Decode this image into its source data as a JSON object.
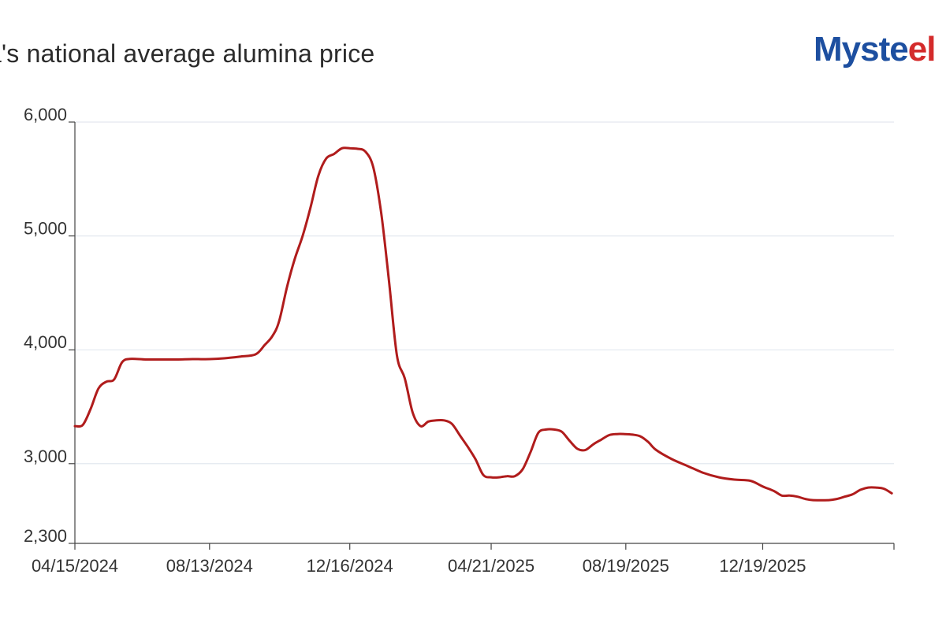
{
  "chart_data": {
    "type": "line",
    "title": "na's national average alumina price",
    "xlabel": "",
    "ylabel": "",
    "ylim": [
      2300,
      6000
    ],
    "y_ticks": [
      "6,000",
      "5,000",
      "4,000",
      "3,000",
      "2,300"
    ],
    "y_tick_values": [
      6000,
      5000,
      4000,
      3000,
      2300
    ],
    "x_range": [
      "2024-04-15",
      "2026-04-15"
    ],
    "x_ticks": [
      "04/15/2024",
      "08/13/2024",
      "12/16/2024",
      "04/21/2025",
      "08/19/2025",
      "12/19/2025"
    ],
    "x_tick_dates": [
      "2024-04-15",
      "2024-08-13",
      "2024-12-16",
      "2025-04-21",
      "2025-08-19",
      "2025-12-19"
    ],
    "grid": true,
    "series": [
      {
        "color": "#b01c1c",
        "points": [
          [
            "2024-04-15",
            3330
          ],
          [
            "2024-04-22",
            3340
          ],
          [
            "2024-04-29",
            3480
          ],
          [
            "2024-05-06",
            3660
          ],
          [
            "2024-05-13",
            3720
          ],
          [
            "2024-05-20",
            3740
          ],
          [
            "2024-05-27",
            3890
          ],
          [
            "2024-06-03",
            3920
          ],
          [
            "2024-06-17",
            3915
          ],
          [
            "2024-07-01",
            3915
          ],
          [
            "2024-07-15",
            3915
          ],
          [
            "2024-07-29",
            3918
          ],
          [
            "2024-08-13",
            3918
          ],
          [
            "2024-08-26",
            3925
          ],
          [
            "2024-09-09",
            3940
          ],
          [
            "2024-09-23",
            3960
          ],
          [
            "2024-10-01",
            4040
          ],
          [
            "2024-10-08",
            4120
          ],
          [
            "2024-10-14",
            4250
          ],
          [
            "2024-10-21",
            4550
          ],
          [
            "2024-10-28",
            4800
          ],
          [
            "2024-11-04",
            5000
          ],
          [
            "2024-11-11",
            5250
          ],
          [
            "2024-11-18",
            5530
          ],
          [
            "2024-11-25",
            5680
          ],
          [
            "2024-12-02",
            5720
          ],
          [
            "2024-12-09",
            5770
          ],
          [
            "2024-12-16",
            5770
          ],
          [
            "2024-12-23",
            5765
          ],
          [
            "2024-12-30",
            5740
          ],
          [
            "2025-01-06",
            5600
          ],
          [
            "2025-01-13",
            5200
          ],
          [
            "2025-01-20",
            4600
          ],
          [
            "2025-01-27",
            3950
          ],
          [
            "2025-02-03",
            3750
          ],
          [
            "2025-02-10",
            3450
          ],
          [
            "2025-02-17",
            3330
          ],
          [
            "2025-02-24",
            3370
          ],
          [
            "2025-03-03",
            3380
          ],
          [
            "2025-03-10",
            3380
          ],
          [
            "2025-03-17",
            3350
          ],
          [
            "2025-03-24",
            3250
          ],
          [
            "2025-03-31",
            3150
          ],
          [
            "2025-04-07",
            3040
          ],
          [
            "2025-04-14",
            2900
          ],
          [
            "2025-04-21",
            2880
          ],
          [
            "2025-04-28",
            2880
          ],
          [
            "2025-05-05",
            2890
          ],
          [
            "2025-05-12",
            2890
          ],
          [
            "2025-05-19",
            2950
          ],
          [
            "2025-05-26",
            3100
          ],
          [
            "2025-06-02",
            3270
          ],
          [
            "2025-06-09",
            3300
          ],
          [
            "2025-06-16",
            3300
          ],
          [
            "2025-06-23",
            3280
          ],
          [
            "2025-06-30",
            3200
          ],
          [
            "2025-07-07",
            3130
          ],
          [
            "2025-07-14",
            3120
          ],
          [
            "2025-07-21",
            3170
          ],
          [
            "2025-07-28",
            3210
          ],
          [
            "2025-08-04",
            3250
          ],
          [
            "2025-08-11",
            3260
          ],
          [
            "2025-08-18",
            3260
          ],
          [
            "2025-08-25",
            3255
          ],
          [
            "2025-09-01",
            3240
          ],
          [
            "2025-09-08",
            3190
          ],
          [
            "2025-09-15",
            3120
          ],
          [
            "2025-09-29",
            3040
          ],
          [
            "2025-10-13",
            2980
          ],
          [
            "2025-10-27",
            2920
          ],
          [
            "2025-11-10",
            2880
          ],
          [
            "2025-11-24",
            2860
          ],
          [
            "2025-12-08",
            2850
          ],
          [
            "2025-12-19",
            2800
          ],
          [
            "2025-12-29",
            2760
          ],
          [
            "2026-01-05",
            2720
          ],
          [
            "2026-01-12",
            2720
          ],
          [
            "2026-01-19",
            2710
          ],
          [
            "2026-01-26",
            2690
          ],
          [
            "2026-02-02",
            2680
          ],
          [
            "2026-02-16",
            2680
          ],
          [
            "2026-02-23",
            2690
          ],
          [
            "2026-03-02",
            2710
          ],
          [
            "2026-03-09",
            2730
          ],
          [
            "2026-03-16",
            2770
          ],
          [
            "2026-03-23",
            2790
          ],
          [
            "2026-03-30",
            2790
          ],
          [
            "2026-04-06",
            2780
          ],
          [
            "2026-04-13",
            2740
          ]
        ]
      }
    ]
  },
  "brand": {
    "name_main": "Myste",
    "name_accent": "el",
    "colors": {
      "primary": "#1d4fa0",
      "accent": "#d42b2b"
    }
  },
  "colors": {
    "grid": "#e3e8ef",
    "axis": "#444444",
    "text": "#333333"
  }
}
